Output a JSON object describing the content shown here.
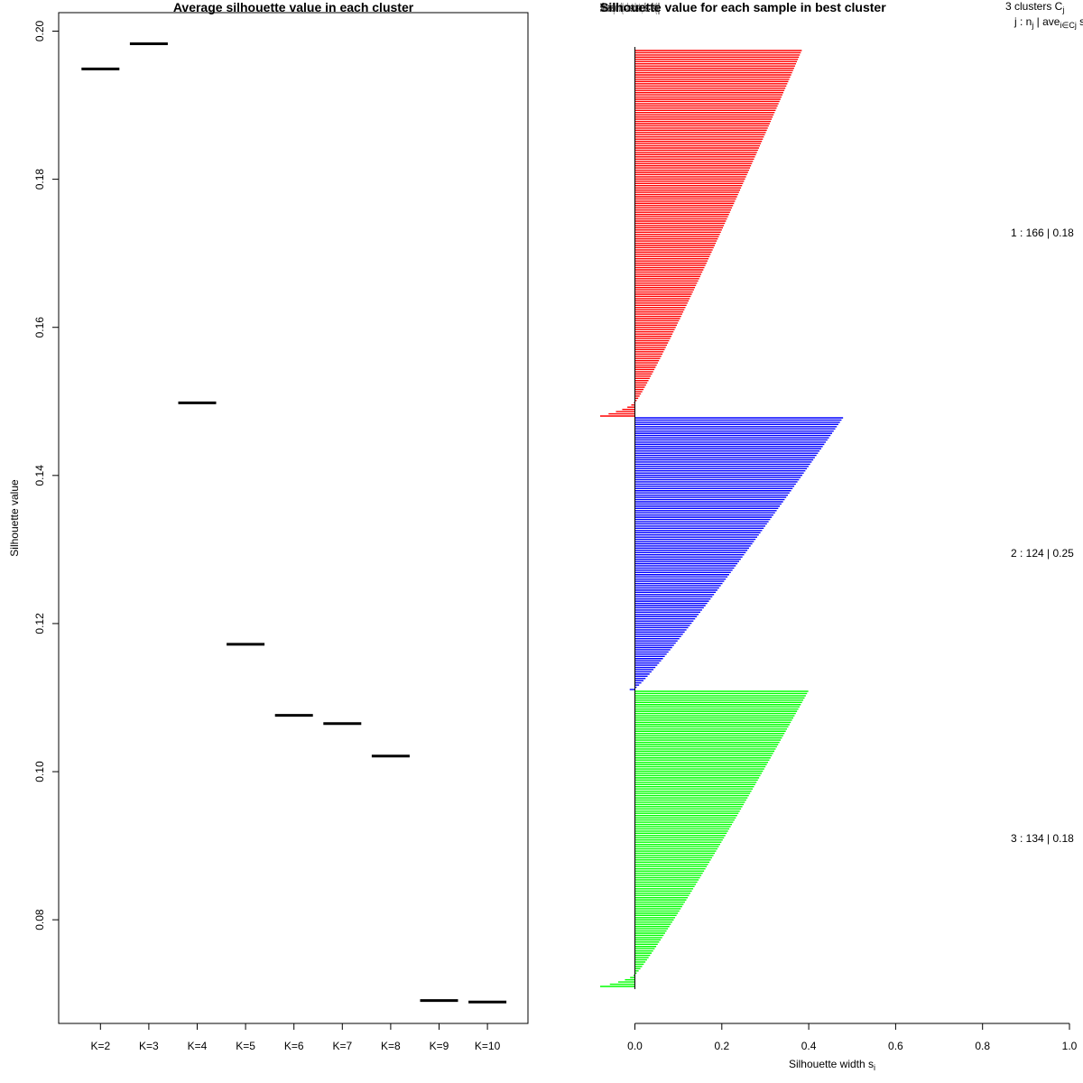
{
  "chart_data": [
    {
      "type": "line",
      "title": "Average silhouette value in each cluster",
      "xlabel": "",
      "ylabel": "Silhouette value",
      "categories": [
        "K=2",
        "K=3",
        "K=4",
        "K=5",
        "K=6",
        "K=7",
        "K=8",
        "K=9",
        "K=10"
      ],
      "values": [
        0.1949,
        0.1983,
        0.1498,
        0.1172,
        0.1076,
        0.1065,
        0.1021,
        0.0691,
        0.0689
      ],
      "yticks": [
        "0.08",
        "0.10",
        "0.12",
        "0.14",
        "0.16",
        "0.18",
        "0.20"
      ],
      "ytick_values": [
        0.08,
        0.1,
        0.12,
        0.14,
        0.16,
        0.18,
        0.2
      ],
      "ylim": [
        0.066,
        0.2025
      ]
    },
    {
      "type": "bar",
      "title": "Silhouette value for each sample in best cluster",
      "title_overlap": "Silhouette plot of (x = best.cluster, dist = dist(x))",
      "xlabel": "Silhouette width s",
      "xlabel_sub": "i",
      "xticks": [
        "0.0",
        "0.2",
        "0.4",
        "0.6",
        "0.8",
        "1.0"
      ],
      "xtick_values": [
        0.0,
        0.2,
        0.4,
        0.6,
        0.8,
        1.0
      ],
      "xlim": [
        -0.08,
        1.0
      ],
      "legend_header": {
        "line1_prefix": "3  clusters  C",
        "line1_sub": "j",
        "line2_prefix": "j :  n",
        "line2_sub_n": "j",
        "line2_mid": " | ave",
        "line2_sub_ave": "i∈Cj",
        "line2_suffix": "  s",
        "line2_sub_s": "i"
      },
      "clusters": [
        {
          "id": 1,
          "n": 166,
          "ave": "0.18",
          "label": "1 :  166  |  0.18",
          "color": "#ff0000",
          "max": 0.38,
          "min": -0.08,
          "neg_count": 7
        },
        {
          "id": 2,
          "n": 124,
          "ave": "0.25",
          "label": "2 :  124  |  0.25",
          "color": "#0000ff",
          "max": 0.475,
          "min": -0.012,
          "neg_count": 1
        },
        {
          "id": 3,
          "n": 134,
          "ave": "0.18",
          "label": "3 :  134  |  0.18",
          "color": "#00ff00",
          "max": 0.395,
          "min": -0.08,
          "neg_count": 6
        }
      ]
    }
  ]
}
